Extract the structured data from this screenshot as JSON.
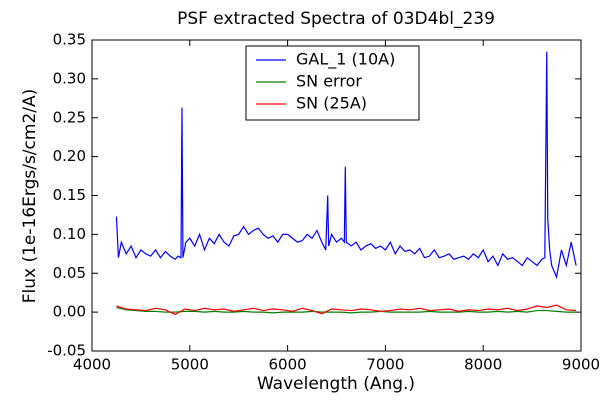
{
  "chart_data": {
    "type": "line",
    "title": "PSF extracted Spectra of 03D4bl_239",
    "title_color": "#ff0000",
    "xlabel": "Wavelength (Ang.)",
    "ylabel": "Flux (1e-16Ergs/s/cm2/A)",
    "xlim": [
      4000,
      9000
    ],
    "ylim": [
      -0.05,
      0.35
    ],
    "xticks": [
      4000,
      5000,
      6000,
      7000,
      8000,
      9000
    ],
    "yticks": [
      -0.05,
      {
        "value": 0,
        "label": "0.00"
      },
      0.05,
      {
        "value": 0.1,
        "label": "0.10"
      },
      0.15,
      {
        "value": 0.2,
        "label": "0.20"
      },
      0.25,
      {
        "value": 0.3,
        "label": "0.30"
      },
      0.35
    ],
    "legend": "upper center",
    "series": [
      {
        "name": "GAL_1 (10A)",
        "color": "#0000ff",
        "x": [
          4250,
          4270,
          4300,
          4350,
          4400,
          4450,
          4500,
          4550,
          4600,
          4650,
          4700,
          4750,
          4800,
          4850,
          4880,
          4910,
          4920,
          4930,
          4960,
          5000,
          5050,
          5100,
          5150,
          5200,
          5250,
          5300,
          5350,
          5400,
          5450,
          5500,
          5550,
          5600,
          5650,
          5700,
          5750,
          5800,
          5850,
          5900,
          5950,
          6000,
          6050,
          6100,
          6150,
          6200,
          6250,
          6300,
          6350,
          6390,
          6410,
          6420,
          6450,
          6500,
          6550,
          6580,
          6590,
          6600,
          6650,
          6700,
          6750,
          6800,
          6850,
          6900,
          6950,
          7000,
          7050,
          7100,
          7150,
          7200,
          7250,
          7300,
          7350,
          7400,
          7450,
          7500,
          7550,
          7600,
          7650,
          7700,
          7750,
          7800,
          7850,
          7900,
          7950,
          8000,
          8050,
          8100,
          8150,
          8200,
          8250,
          8300,
          8350,
          8400,
          8450,
          8500,
          8550,
          8600,
          8630,
          8650,
          8660,
          8680,
          8700,
          8750,
          8800,
          8850,
          8900,
          8950
        ],
        "values": [
          0.123,
          0.07,
          0.09,
          0.075,
          0.085,
          0.07,
          0.08,
          0.075,
          0.072,
          0.08,
          0.07,
          0.078,
          0.072,
          0.068,
          0.072,
          0.07,
          0.263,
          0.07,
          0.09,
          0.095,
          0.085,
          0.1,
          0.08,
          0.095,
          0.088,
          0.1,
          0.09,
          0.085,
          0.098,
          0.1,
          0.11,
          0.1,
          0.105,
          0.108,
          0.1,
          0.095,
          0.098,
          0.09,
          0.1,
          0.1,
          0.095,
          0.09,
          0.092,
          0.1,
          0.095,
          0.105,
          0.09,
          0.08,
          0.15,
          0.085,
          0.1,
          0.09,
          0.095,
          0.09,
          0.187,
          0.09,
          0.085,
          0.09,
          0.08,
          0.085,
          0.088,
          0.082,
          0.085,
          0.08,
          0.09,
          0.075,
          0.085,
          0.078,
          0.08,
          0.075,
          0.082,
          0.07,
          0.072,
          0.08,
          0.07,
          0.072,
          0.075,
          0.068,
          0.07,
          0.072,
          0.068,
          0.075,
          0.07,
          0.08,
          0.065,
          0.072,
          0.06,
          0.075,
          0.068,
          0.07,
          0.065,
          0.06,
          0.07,
          0.065,
          0.06,
          0.068,
          0.07,
          0.335,
          0.12,
          0.08,
          0.06,
          0.045,
          0.08,
          0.06,
          0.09,
          0.06
        ]
      },
      {
        "name": "SN error",
        "color": "#008000",
        "x": [
          4250,
          4350,
          4450,
          4550,
          4650,
          4750,
          4850,
          4950,
          5050,
          5150,
          5250,
          5350,
          5450,
          5550,
          5650,
          5750,
          5850,
          5950,
          6050,
          6150,
          6250,
          6350,
          6450,
          6550,
          6650,
          6750,
          6850,
          6950,
          7050,
          7150,
          7250,
          7350,
          7450,
          7550,
          7650,
          7750,
          7850,
          7950,
          8050,
          8150,
          8250,
          8350,
          8450,
          8550,
          8650,
          8750,
          8850,
          8950
        ],
        "values": [
          0.006,
          0.003,
          0.002,
          0.001,
          0.001,
          0,
          0,
          0.001,
          0.001,
          0,
          0.001,
          0,
          0,
          0.001,
          0,
          0,
          -0.001,
          0,
          0,
          0,
          0.001,
          0,
          0,
          0,
          -0.001,
          0,
          0,
          0.001,
          0,
          0,
          0,
          0,
          0.001,
          0,
          0,
          0,
          0.001,
          0,
          0,
          0.001,
          0,
          0.001,
          0,
          0.002,
          0.002,
          0.001,
          0,
          0
        ]
      },
      {
        "name": "SN (25A)",
        "color": "#ff0000",
        "x": [
          4250,
          4350,
          4450,
          4550,
          4650,
          4750,
          4850,
          4950,
          5050,
          5150,
          5250,
          5350,
          5450,
          5550,
          5650,
          5750,
          5850,
          5950,
          6050,
          6150,
          6250,
          6350,
          6450,
          6550,
          6650,
          6750,
          6850,
          6950,
          7050,
          7150,
          7250,
          7350,
          7450,
          7550,
          7650,
          7750,
          7850,
          7950,
          8050,
          8150,
          8250,
          8350,
          8450,
          8550,
          8650,
          8750,
          8850,
          8950
        ],
        "values": [
          0.008,
          0.004,
          0.003,
          0.002,
          0.005,
          0.003,
          -0.003,
          0.004,
          0.002,
          0.005,
          0.003,
          0.004,
          0.001,
          0.003,
          0.005,
          0.002,
          0.004,
          0.003,
          0.001,
          0.005,
          0.002,
          -0.002,
          0.004,
          0.003,
          0.002,
          0.004,
          0.003,
          0.001,
          0.002,
          0.004,
          0.003,
          0.005,
          0.002,
          0.003,
          0.004,
          0.001,
          0.003,
          0.002,
          0.004,
          0.003,
          0.005,
          0.002,
          0.004,
          0.008,
          0.006,
          0.009,
          0.003,
          0.002
        ]
      }
    ]
  }
}
